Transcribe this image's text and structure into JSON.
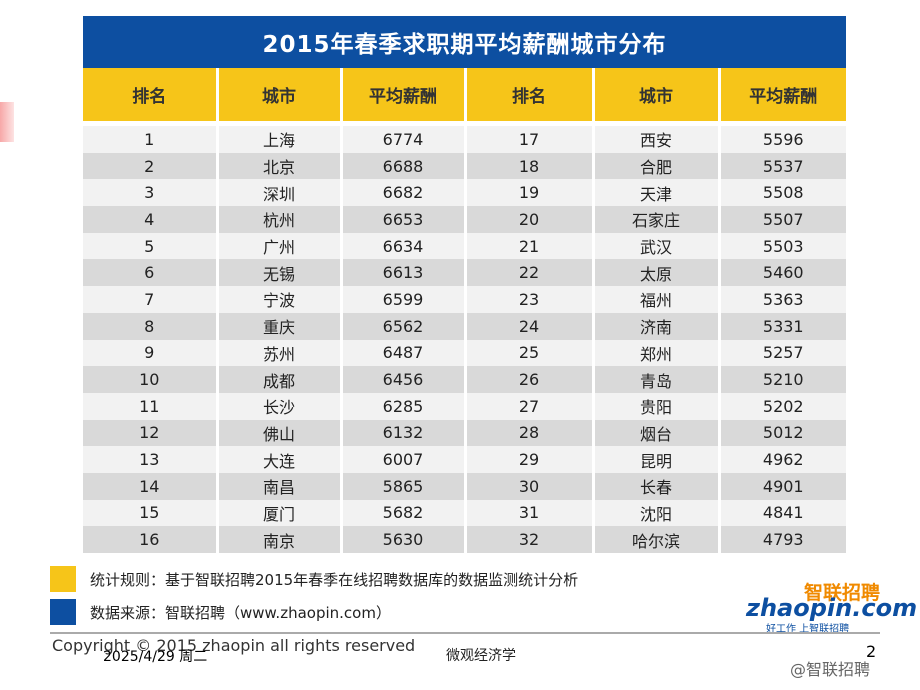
{
  "title": "2015年春季求职期平均薪酬城市分布",
  "headers": [
    "排名",
    "城市",
    "平均薪酬",
    "排名",
    "城市",
    "平均薪酬"
  ],
  "rows": [
    [
      [
        "1",
        "上海",
        "6774"
      ],
      [
        "17",
        "西安",
        "5596"
      ]
    ],
    [
      [
        "2",
        "北京",
        "6688"
      ],
      [
        "18",
        "合肥",
        "5537"
      ]
    ],
    [
      [
        "3",
        "深圳",
        "6682"
      ],
      [
        "19",
        "天津",
        "5508"
      ]
    ],
    [
      [
        "4",
        "杭州",
        "6653"
      ],
      [
        "20",
        "石家庄",
        "5507"
      ]
    ],
    [
      [
        "5",
        "广州",
        "6634"
      ],
      [
        "21",
        "武汉",
        "5503"
      ]
    ],
    [
      [
        "6",
        "无锡",
        "6613"
      ],
      [
        "22",
        "太原",
        "5460"
      ]
    ],
    [
      [
        "7",
        "宁波",
        "6599"
      ],
      [
        "23",
        "福州",
        "5363"
      ]
    ],
    [
      [
        "8",
        "重庆",
        "6562"
      ],
      [
        "24",
        "济南",
        "5331"
      ]
    ],
    [
      [
        "9",
        "苏州",
        "6487"
      ],
      [
        "25",
        "郑州",
        "5257"
      ]
    ],
    [
      [
        "10",
        "成都",
        "6456"
      ],
      [
        "26",
        "青岛",
        "5210"
      ]
    ],
    [
      [
        "11",
        "长沙",
        "6285"
      ],
      [
        "27",
        "贵阳",
        "5202"
      ]
    ],
    [
      [
        "12",
        "佛山",
        "6132"
      ],
      [
        "28",
        "烟台",
        "5012"
      ]
    ],
    [
      [
        "13",
        "大连",
        "6007"
      ],
      [
        "29",
        "昆明",
        "4962"
      ]
    ],
    [
      [
        "14",
        "南昌",
        "5865"
      ],
      [
        "30",
        "长春",
        "4901"
      ]
    ],
    [
      [
        "15",
        "厦门",
        "5682"
      ],
      [
        "31",
        "沈阳",
        "4841"
      ]
    ],
    [
      [
        "16",
        "南京",
        "5630"
      ],
      [
        "32",
        "哈尔滨",
        "4793"
      ]
    ]
  ],
  "legend": {
    "rule": "统计规则：基于智联招聘2015年春季在线招聘数据库的数据监测统计分析",
    "source": "数据来源：智联招聘（www.zhaopin.com）"
  },
  "logo": {
    "cn": "智联招聘",
    "en": "zhaopin.com",
    "slogan": "好工作 上智联招聘"
  },
  "copyright": "Copyright © 2015 zhaopin all rights reserved",
  "footer": {
    "date": "2025/4/29 周二",
    "course": "微观经济学",
    "page": "2",
    "watermark": "@智联招聘"
  },
  "colors": {
    "title_bg": "#0d4fa1",
    "header_bg": "#f6c519",
    "row_light": "#f2f2f2",
    "row_dark": "#d9d9d9"
  }
}
